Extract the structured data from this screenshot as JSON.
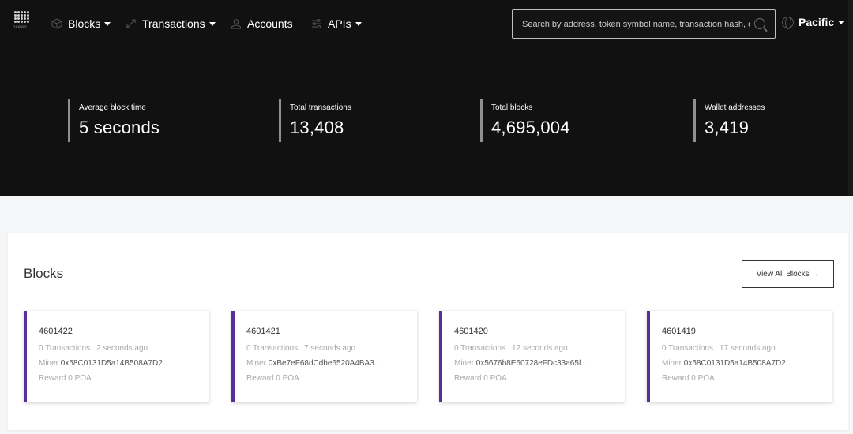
{
  "brand": {
    "name": "ocean"
  },
  "nav": {
    "blocks": "Blocks",
    "transactions": "Transactions",
    "accounts": "Accounts",
    "apis": "APIs",
    "network": "Pacific"
  },
  "search": {
    "placeholder": "Search by address, token symbol name, transaction hash, or block number"
  },
  "stats": [
    {
      "label": "Average block time",
      "value": "5 seconds"
    },
    {
      "label": "Total transactions",
      "value": "13,408"
    },
    {
      "label": "Total blocks",
      "value": "4,695,004"
    },
    {
      "label": "Wallet addresses",
      "value": "3,419"
    }
  ],
  "blocks_section": {
    "title": "Blocks",
    "view_all": "View All Blocks →",
    "tiles": [
      {
        "number": "4601422",
        "transactions": "0 Transactions",
        "age": "2 seconds ago",
        "miner_label": "Miner",
        "miner": "0x58C0131D5a14B508A7D2...",
        "reward": "Reward 0 POA"
      },
      {
        "number": "4601421",
        "transactions": "0 Transactions",
        "age": "7 seconds ago",
        "miner_label": "Miner",
        "miner": "0xBe7eF68dCdbe6520A4BA3...",
        "reward": "Reward 0 POA"
      },
      {
        "number": "4601420",
        "transactions": "0 Transactions",
        "age": "12 seconds ago",
        "miner_label": "Miner",
        "miner": "0x5676b8E60728eFDc33a65f...",
        "reward": "Reward 0 POA"
      },
      {
        "number": "4601419",
        "transactions": "0 Transactions",
        "age": "17 seconds ago",
        "miner_label": "Miner",
        "miner": "0x58C0131D5a14B508A7D2...",
        "reward": "Reward 0 POA"
      }
    ]
  },
  "colors": {
    "header_bg": "#111112",
    "accent": "#5b2d9a",
    "page_bg": "#f5f6f8"
  }
}
